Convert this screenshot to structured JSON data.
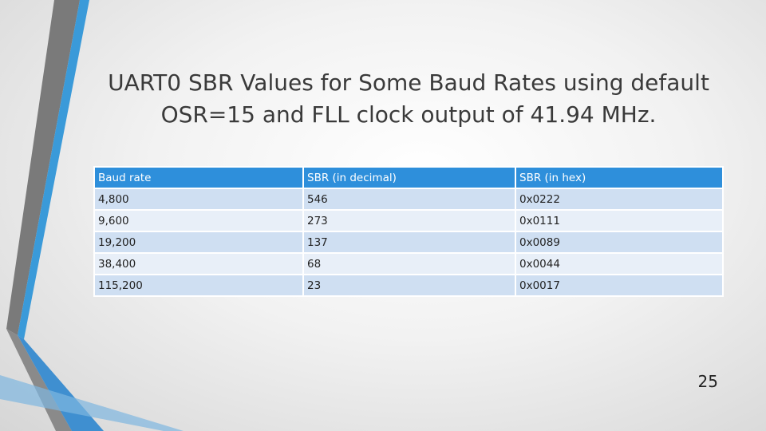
{
  "slide": {
    "title_lines": [
      "UART0 SBR Values for Some Baud Rates using default",
      "OSR=15 and FLL clock output of 41.94 MHz."
    ],
    "table": {
      "header": [
        "Baud rate",
        "SBR (in decimal)",
        "SBR (in hex)"
      ],
      "rows": [
        [
          "4,800",
          "546",
          "0x0222"
        ],
        [
          "9,600",
          "273",
          "0x0111"
        ],
        [
          "19,200",
          "137",
          "0x0089"
        ],
        [
          "38,400",
          "68",
          "0x0044"
        ],
        [
          "115,200",
          "23",
          "0x0017"
        ]
      ]
    },
    "page_number": "25"
  }
}
